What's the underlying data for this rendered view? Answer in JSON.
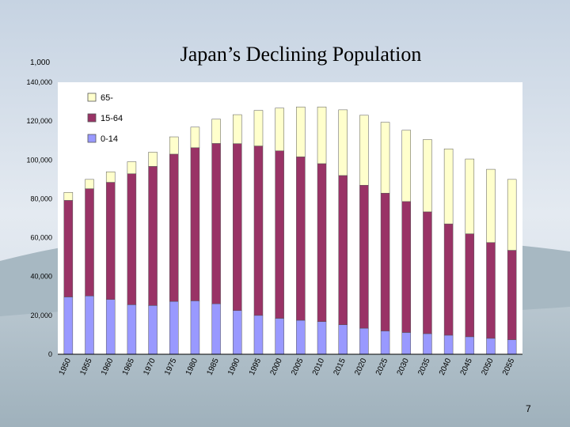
{
  "slide": {
    "title": "Japan’s Declining Population",
    "page_number": "7"
  },
  "colors": {
    "old": "#ffffcc",
    "working": "#993366",
    "young": "#9999ff",
    "plot_bg": "#ffffff"
  },
  "chart_data": {
    "type": "bar",
    "stacked": true,
    "title": "Japan’s Declining Population",
    "unit_label": "1,000",
    "xlabel": "",
    "ylabel": "",
    "ylim": [
      0,
      140000
    ],
    "y_ticks": [
      0,
      20000,
      40000,
      60000,
      80000,
      100000,
      120000,
      140000
    ],
    "y_tick_labels": [
      "0",
      "20,000",
      "40,000",
      "60,000",
      "80,000",
      "100,000",
      "120,000",
      "140,000"
    ],
    "categories": [
      "1950",
      "1955",
      "1960",
      "1965",
      "1970",
      "1975",
      "1980",
      "1985",
      "1990",
      "1995",
      "2000",
      "2005",
      "2010",
      "2015",
      "2020",
      "2025",
      "2030",
      "2035",
      "2040",
      "2045",
      "2050",
      "2055"
    ],
    "series": [
      {
        "name": "0-14",
        "color": "#9999ff",
        "values": [
          29500,
          30000,
          28200,
          25500,
          25100,
          27200,
          27500,
          26000,
          22500,
          20000,
          18500,
          17500,
          16800,
          15200,
          13400,
          12000,
          11200,
          10600,
          9800,
          9000,
          8200,
          7500
        ]
      },
      {
        "name": "15-64",
        "color": "#993366",
        "values": [
          49700,
          55200,
          60300,
          67400,
          71600,
          75800,
          78800,
          82500,
          85900,
          87200,
          86200,
          84100,
          81300,
          76800,
          73600,
          70900,
          67400,
          62700,
          57300,
          53000,
          49300,
          46000
        ]
      },
      {
        "name": "65-",
        "color": "#ffffcc",
        "values": [
          4100,
          4800,
          5400,
          6200,
          7300,
          8900,
          10600,
          12500,
          14900,
          18300,
          22000,
          25700,
          29200,
          33800,
          36000,
          36500,
          36700,
          37200,
          38600,
          38500,
          37700,
          36500
        ]
      }
    ],
    "legend": {
      "placement": "top-left",
      "entries": [
        "65-",
        "15-64",
        "0-14"
      ]
    },
    "grid": false
  }
}
